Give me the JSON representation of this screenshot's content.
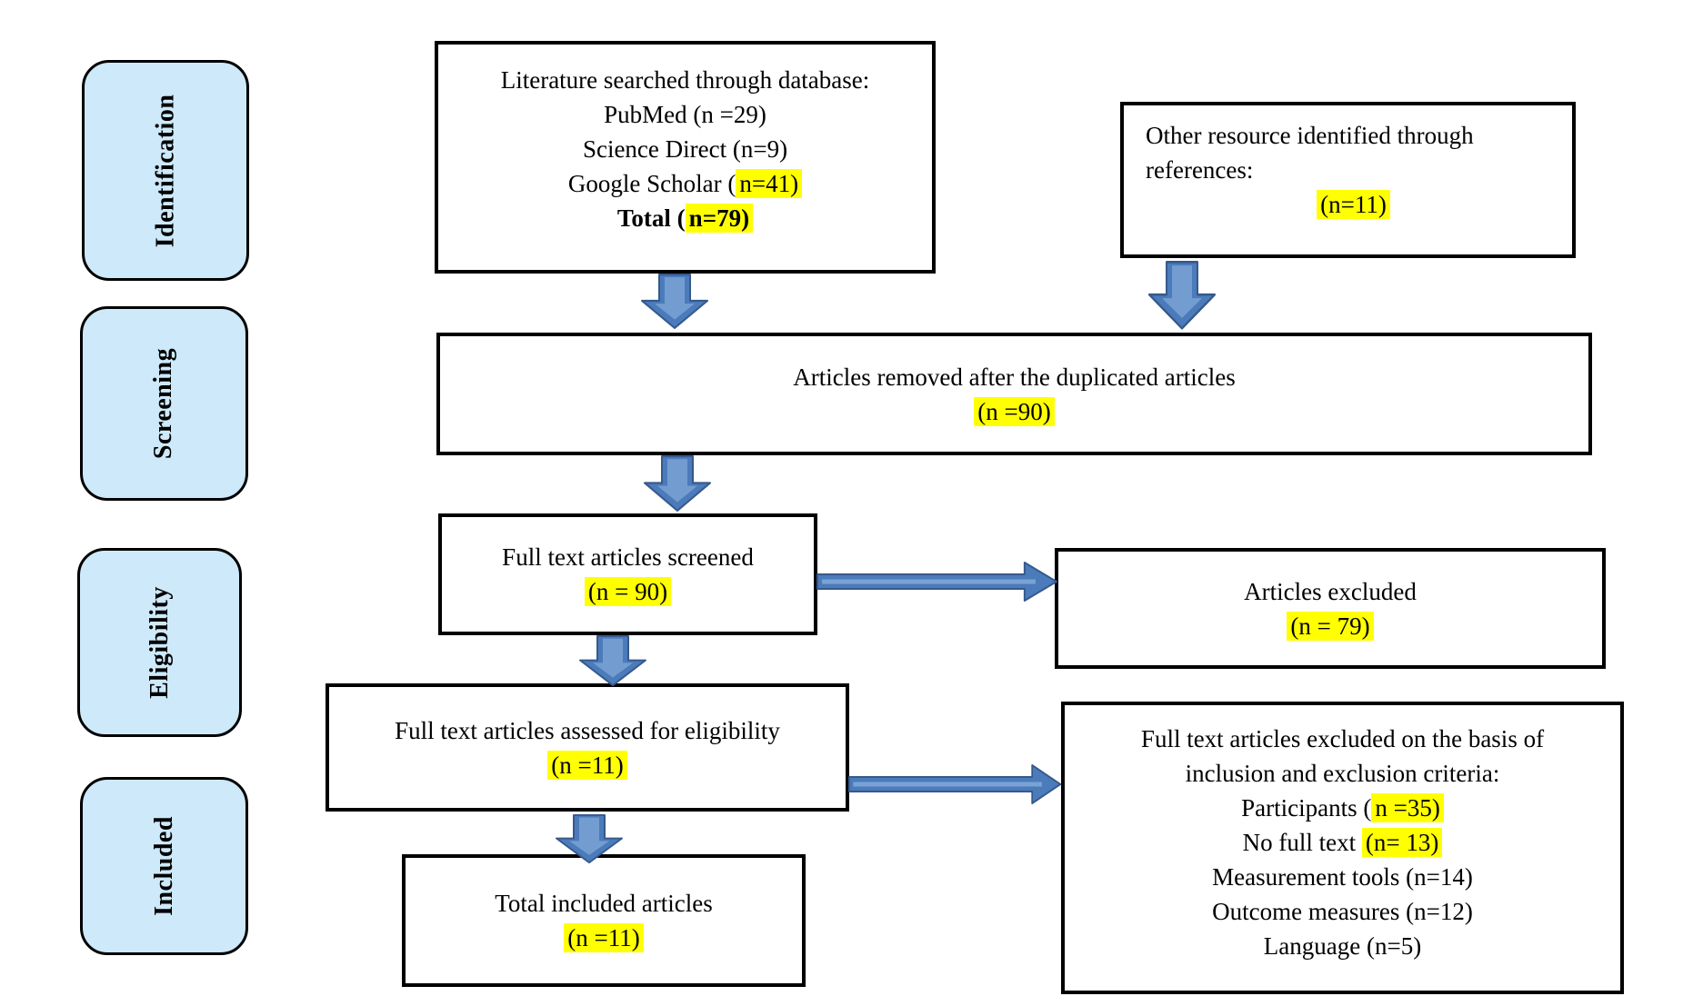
{
  "colors": {
    "highlight": "#ffff00",
    "stage_fill": "#cde9fa",
    "arrow_fill": "#4b7bba",
    "arrow_border": "#36598c",
    "box_border": "#000000"
  },
  "stages": [
    {
      "label": "Identification"
    },
    {
      "label": "Screening"
    },
    {
      "label": "Eligibility"
    },
    {
      "label": "Included"
    }
  ],
  "boxes": {
    "literature": {
      "lines": [
        {
          "segs": [
            {
              "t": "Literature searched through database:"
            }
          ]
        },
        {
          "segs": [
            {
              "t": "PubMed (n =29)"
            }
          ]
        },
        {
          "segs": [
            {
              "t": "Science Direct (n=9)"
            }
          ]
        },
        {
          "segs": [
            {
              "t": "Google Scholar ("
            },
            {
              "t": "n=41)",
              "h": true
            }
          ]
        },
        {
          "segs": [
            {
              "t": "Total (",
              "b": true
            },
            {
              "t": "n=79)",
              "h": true,
              "b": true
            }
          ]
        }
      ]
    },
    "other_resource": {
      "lines": [
        {
          "align": "left",
          "segs": [
            {
              "t": "Other resource identified through"
            }
          ]
        },
        {
          "align": "left",
          "segs": [
            {
              "t": "references:"
            }
          ]
        },
        {
          "segs": [
            {
              "t": "(n=11)",
              "h": true
            }
          ]
        }
      ]
    },
    "duplicates_removed": {
      "lines": [
        {
          "segs": [
            {
              "t": "Articles removed after the duplicated articles"
            }
          ]
        },
        {
          "segs": [
            {
              "t": "(n =90)",
              "h": true
            }
          ]
        }
      ]
    },
    "screened": {
      "lines": [
        {
          "segs": [
            {
              "t": "Full text articles screened"
            }
          ]
        },
        {
          "segs": [
            {
              "t": "(n = 90)",
              "h": true
            }
          ]
        }
      ]
    },
    "excluded": {
      "lines": [
        {
          "segs": [
            {
              "t": "Articles excluded"
            }
          ]
        },
        {
          "segs": [
            {
              "t": "(n = 79)",
              "h": true
            }
          ]
        }
      ]
    },
    "assessed": {
      "lines": [
        {
          "segs": [
            {
              "t": "Full text articles assessed for eligibility"
            }
          ]
        },
        {
          "segs": [
            {
              "t": "(n =11)",
              "h": true
            }
          ]
        }
      ]
    },
    "exclusion_criteria": {
      "lines": [
        {
          "segs": [
            {
              "t": "Full text articles excluded on the basis of"
            }
          ]
        },
        {
          "segs": [
            {
              "t": "inclusion and exclusion criteria:"
            }
          ]
        },
        {
          "segs": [
            {
              "t": "Participants ("
            },
            {
              "t": "n =35)",
              "h": true
            }
          ]
        },
        {
          "segs": [
            {
              "t": "No full text "
            },
            {
              "t": "(n= 13)",
              "h": true
            }
          ]
        },
        {
          "segs": [
            {
              "t": "Measurement tools (n=14)"
            }
          ]
        },
        {
          "segs": [
            {
              "t": "Outcome measures (n=12)"
            }
          ]
        },
        {
          "segs": [
            {
              "t": "Language (n=5)"
            }
          ]
        }
      ]
    },
    "total_included": {
      "lines": [
        {
          "segs": [
            {
              "t": "Total included articles"
            }
          ]
        },
        {
          "segs": [
            {
              "t": "(n =11)",
              "h": true
            }
          ]
        }
      ]
    }
  }
}
